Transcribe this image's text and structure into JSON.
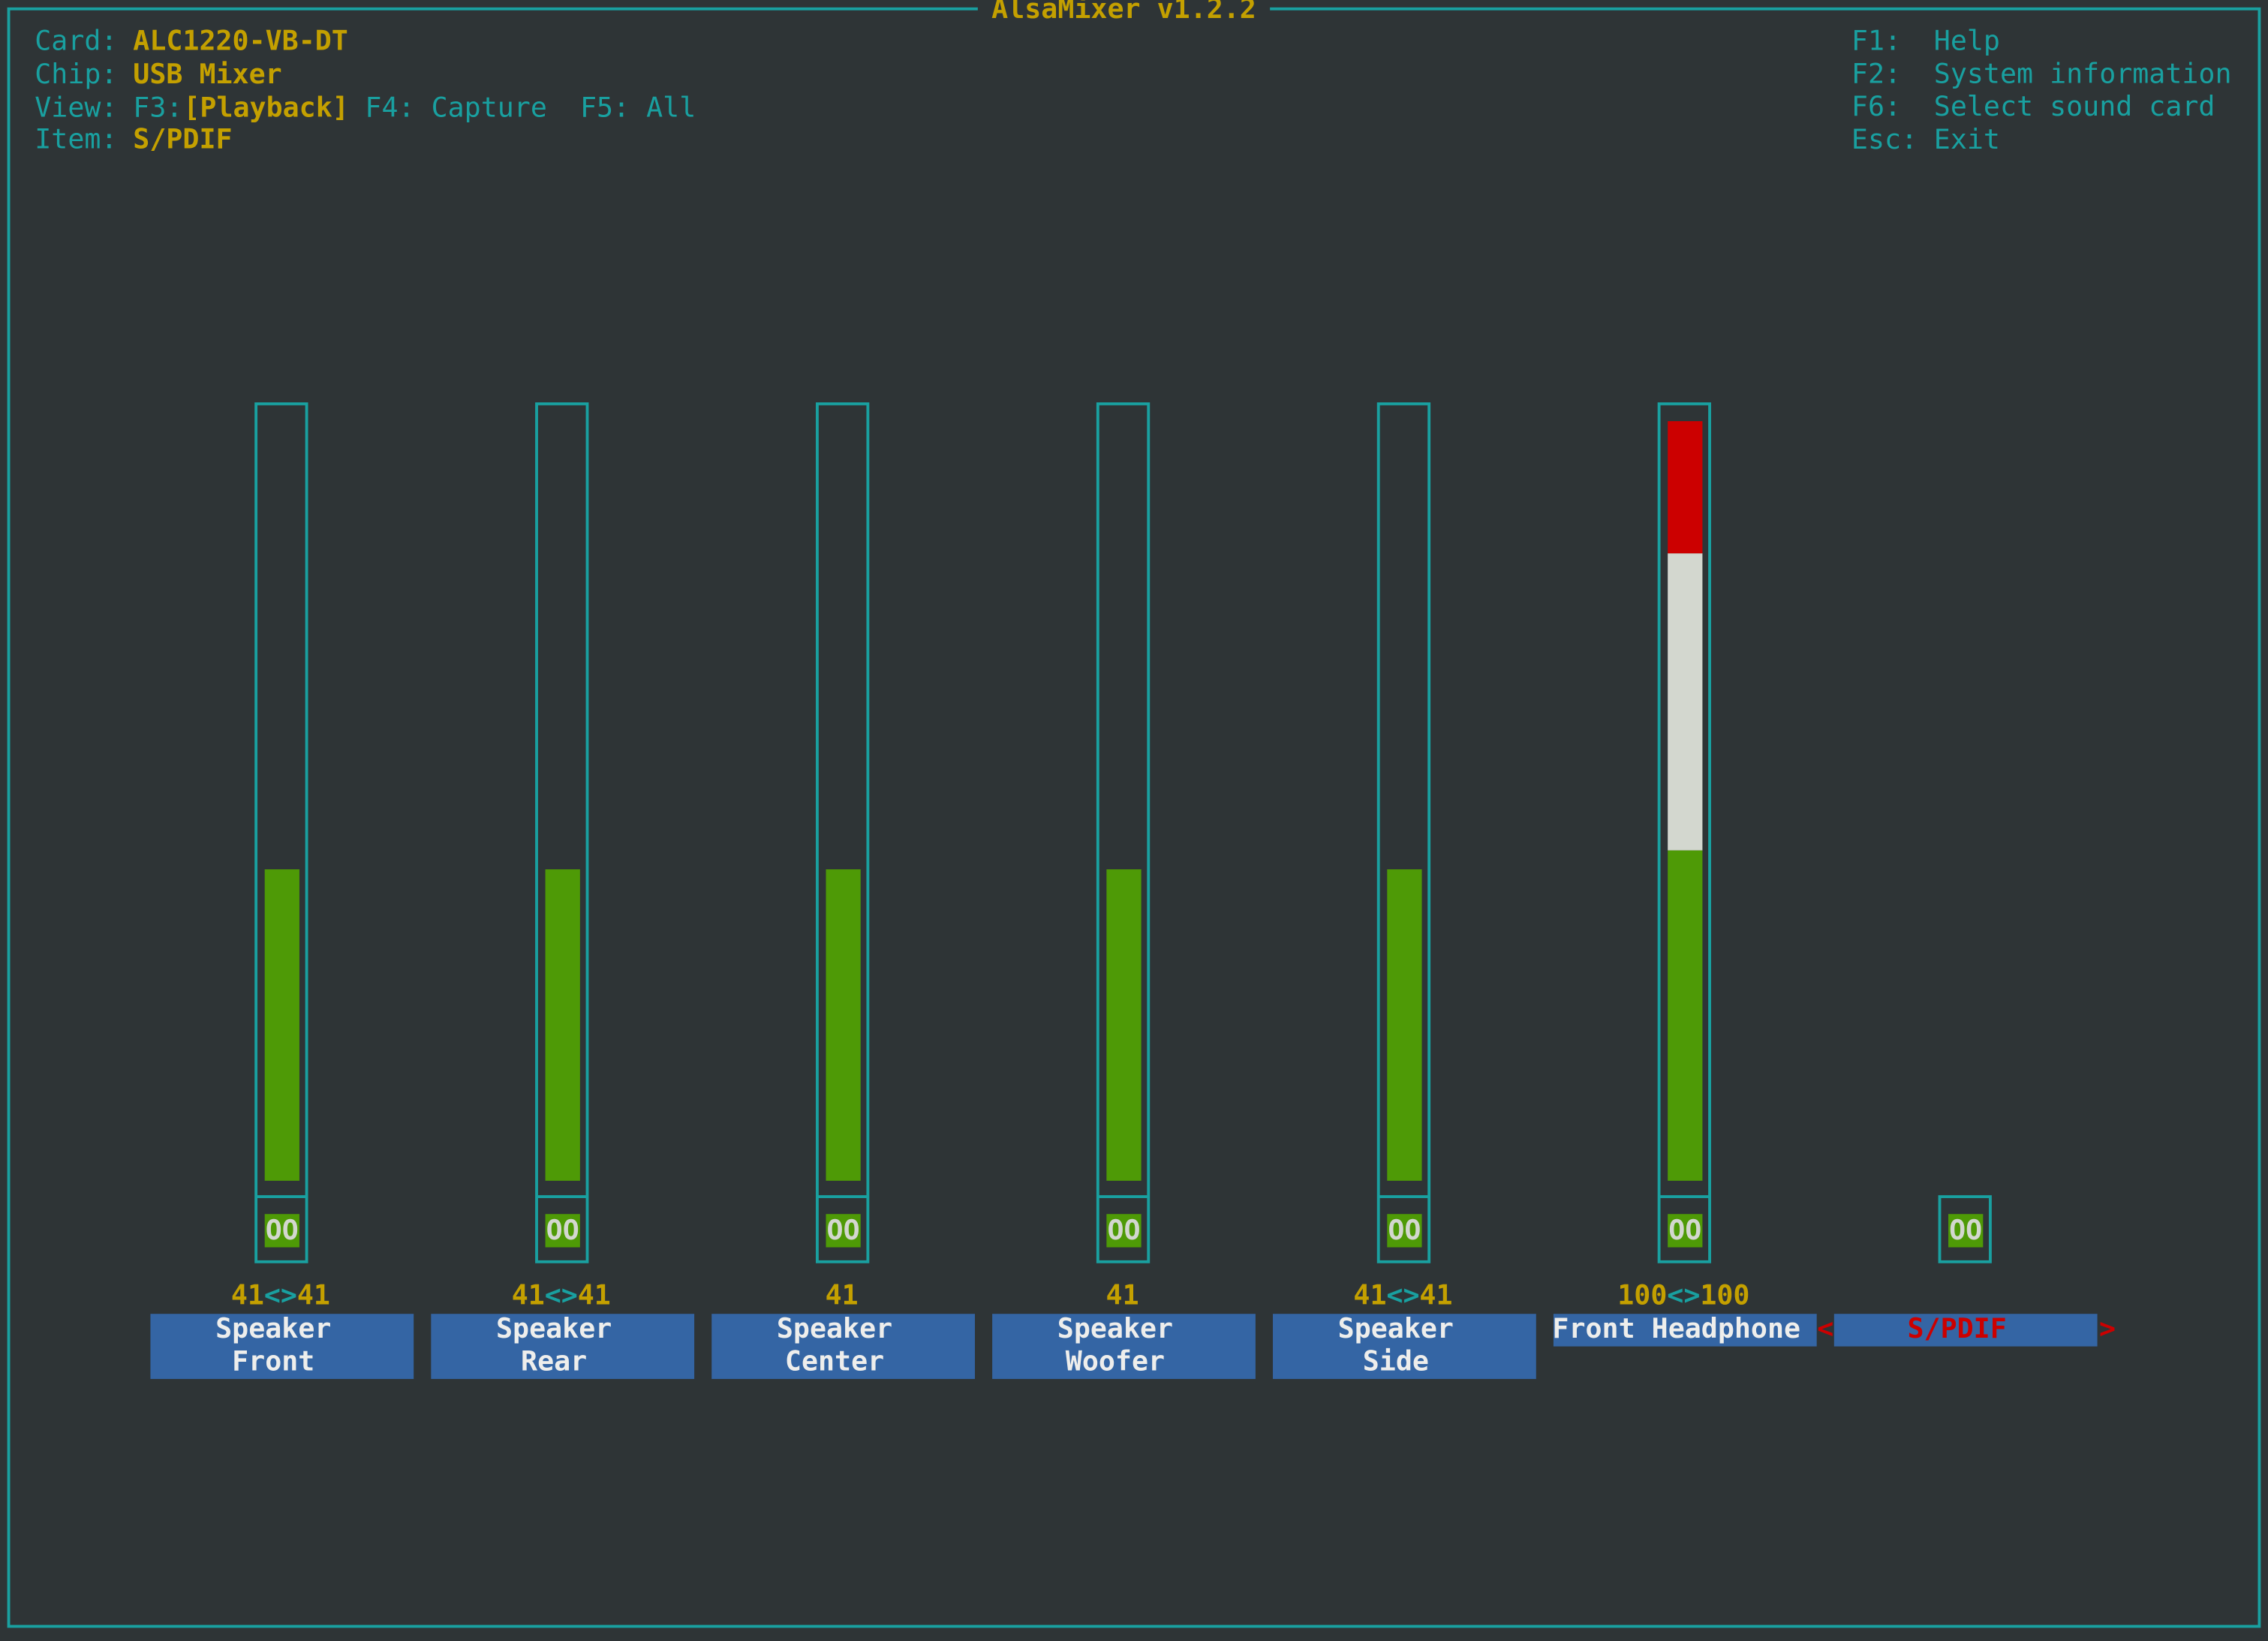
{
  "window_title": "AlsaMixer v1.2.2",
  "info": {
    "card": {
      "label": "Card:",
      "value": "ALC1220-VB-DT"
    },
    "chip": {
      "label": "Chip:",
      "value": "USB Mixer"
    },
    "view": {
      "label": "View:",
      "current_key": "F3:",
      "current": "[Playback]",
      "others": "F4: Capture  F5: All"
    },
    "item": {
      "label": "Item:",
      "value": "S/PDIF"
    }
  },
  "help": [
    {
      "key": "F1:",
      "text": "Help"
    },
    {
      "key": "F2:",
      "text": "System information"
    },
    {
      "key": "F6:",
      "text": "Select sound card"
    },
    {
      "key": "Esc:",
      "text": "Exit"
    }
  ],
  "channel_separator": "<>",
  "selection_markers": [
    "<",
    ">"
  ],
  "controls": [
    {
      "name_lines": [
        "Speaker",
        "Front"
      ],
      "levels": [
        41,
        41
      ],
      "mute_label": "OO"
    },
    {
      "name_lines": [
        "Speaker",
        "Rear"
      ],
      "levels": [
        41,
        41
      ],
      "mute_label": "OO"
    },
    {
      "name_lines": [
        "Speaker",
        "Center"
      ],
      "levels": [
        41
      ],
      "mute_label": "OO"
    },
    {
      "name_lines": [
        "Speaker",
        "Woofer"
      ],
      "levels": [
        41
      ],
      "mute_label": "OO"
    },
    {
      "name_lines": [
        "Speaker",
        "Side"
      ],
      "levels": [
        41,
        41
      ],
      "mute_label": "OO"
    },
    {
      "name_lines": [
        "Front Headphone"
      ],
      "levels": [
        100,
        100
      ],
      "mute_label": "OO"
    },
    {
      "name_lines": [
        "S/PDIF"
      ],
      "mute_label": "OO",
      "selected": true
    }
  ]
}
